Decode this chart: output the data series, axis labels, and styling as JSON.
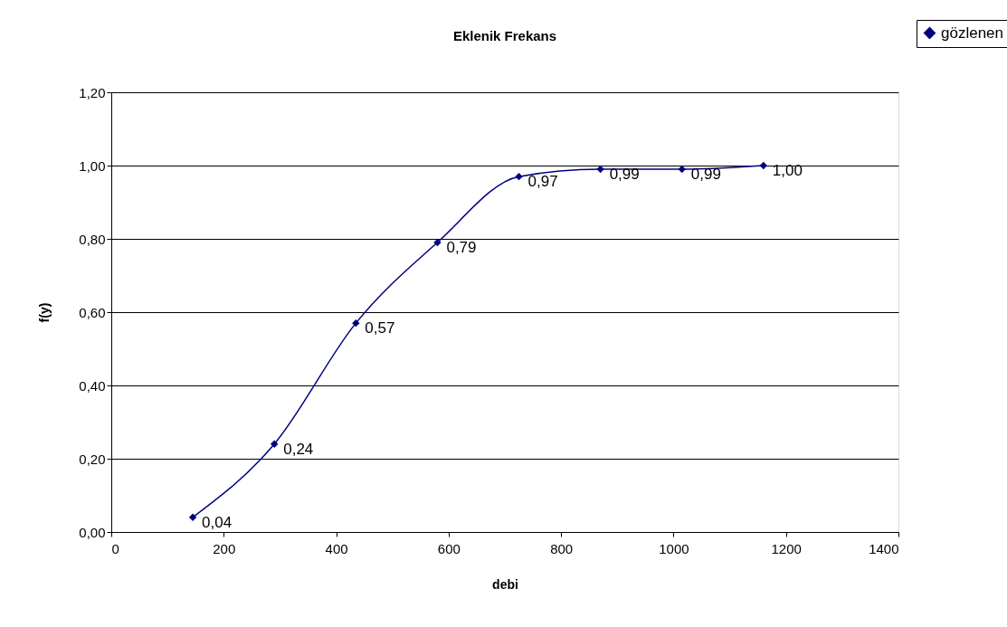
{
  "chart_data": {
    "type": "line",
    "title": "Eklenik Frekans",
    "xlabel": "debi",
    "ylabel": "f(y)",
    "x": [
      145,
      290,
      435,
      580,
      725,
      870,
      1015,
      1160
    ],
    "series": [
      {
        "name": "gözlenen",
        "color": "#000080",
        "values": [
          0.04,
          0.24,
          0.57,
          0.79,
          0.97,
          0.99,
          0.99,
          1.0
        ],
        "value_labels": [
          "0,04",
          "0,24",
          "0,57",
          "0,79",
          "0,97",
          "0,99",
          "0,99",
          "1,00"
        ]
      }
    ],
    "xlim": [
      0,
      1400
    ],
    "xticks": [
      0,
      200,
      400,
      600,
      800,
      1000,
      1200,
      1400
    ],
    "ylim": [
      0,
      1.2
    ],
    "yticks": [
      {
        "value": 0,
        "label": "0,00"
      },
      {
        "value": 0.2,
        "label": "0,20"
      },
      {
        "value": 0.4,
        "label": "0,40"
      },
      {
        "value": 0.6,
        "label": "0,60"
      },
      {
        "value": 0.8,
        "label": "0,80"
      },
      {
        "value": 1.0,
        "label": "1,00"
      },
      {
        "value": 1.2,
        "label": "1,20"
      }
    ],
    "grid": "y",
    "legend": "top right",
    "marker": "diamond",
    "line_style": "solid"
  }
}
